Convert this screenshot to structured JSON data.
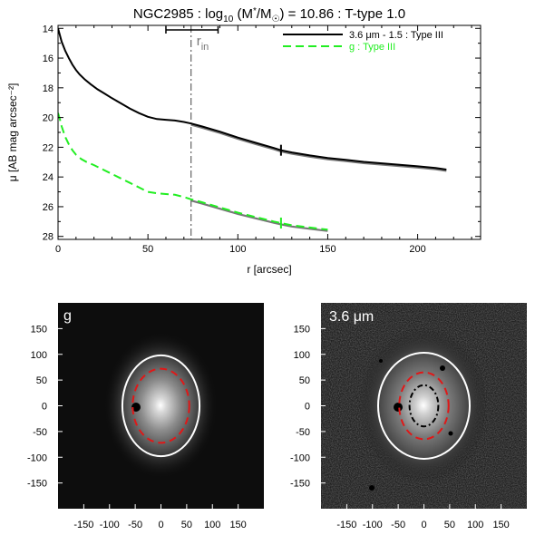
{
  "figure": {
    "title_prefix": "NGC2985 : log",
    "title_sub": "10",
    "title_mid": " (M",
    "title_star": "*",
    "title_slash": "/M",
    "title_sun": "☉",
    "title_suffix": ") = 10.86 : T-type 1.0"
  },
  "chart_data": [
    {
      "type": "line",
      "panel": "surface-brightness-profile",
      "xlabel": "r [arcsec]",
      "ylabel": "μ [AB mag arcsec⁻²]",
      "xlim": [
        0,
        235
      ],
      "ylim": [
        28.2,
        13.8
      ],
      "y_inverted": true,
      "xticks": [
        0,
        50,
        100,
        150,
        200
      ],
      "yticks": [
        14,
        16,
        18,
        20,
        22,
        24,
        26,
        28
      ],
      "legend_position": "top-right",
      "colors": {
        "ir": "#000000",
        "g": "#22ee22",
        "fit": "#555555",
        "rin": "#777777"
      },
      "series": [
        {
          "name": "3.6 μm - 1.5 : Type III",
          "style": "solid",
          "x": [
            0,
            2,
            4,
            6,
            8,
            10,
            12,
            15,
            18,
            22,
            26,
            30,
            35,
            40,
            45,
            50,
            55,
            60,
            65,
            70,
            74,
            80,
            90,
            100,
            110,
            120,
            124,
            130,
            140,
            150,
            160,
            170,
            180,
            190,
            200,
            210,
            216
          ],
          "values": [
            14.0,
            14.9,
            15.5,
            16.0,
            16.45,
            16.8,
            17.1,
            17.45,
            17.75,
            18.1,
            18.4,
            18.7,
            19.05,
            19.4,
            19.7,
            19.95,
            20.1,
            20.15,
            20.2,
            20.3,
            20.4,
            20.6,
            20.95,
            21.35,
            21.7,
            22.05,
            22.2,
            22.35,
            22.55,
            22.72,
            22.85,
            22.98,
            23.08,
            23.18,
            23.28,
            23.4,
            23.5
          ]
        },
        {
          "name": "g : Type III",
          "style": "dashed",
          "x": [
            0,
            1,
            2,
            4,
            6,
            8,
            10,
            13,
            16,
            20,
            25,
            30,
            35,
            40,
            45,
            50,
            55,
            60,
            65,
            70,
            74,
            80,
            90,
            100,
            110,
            120,
            124,
            130,
            140,
            150
          ],
          "values": [
            19.7,
            20.1,
            20.6,
            21.3,
            21.8,
            22.2,
            22.5,
            22.8,
            23.0,
            23.2,
            23.5,
            23.8,
            24.1,
            24.4,
            24.7,
            25.0,
            25.1,
            25.15,
            25.2,
            25.35,
            25.5,
            25.7,
            26.05,
            26.4,
            26.7,
            27.0,
            27.1,
            27.25,
            27.4,
            27.55
          ]
        }
      ],
      "break_markers": [
        {
          "series": "3.6 μm - 1.5 : Type III",
          "x": 124,
          "y": 22.2
        },
        {
          "series": "g : Type III",
          "x": 124,
          "y": 27.1
        }
      ],
      "r_in": {
        "label": "r",
        "label_sub": "in",
        "x": 74,
        "range": [
          60,
          89
        ]
      }
    },
    {
      "type": "image",
      "panel": "g-band-image",
      "label": "g",
      "xticks": [
        "-150",
        "-100",
        "-50",
        "0",
        "50",
        "100",
        "150"
      ],
      "yticks": [
        "150",
        "100",
        "50",
        "0",
        "-50",
        "-100",
        "-150"
      ],
      "xlim": [
        -200,
        200
      ],
      "ylim": [
        -200,
        200
      ],
      "ellipses": [
        {
          "role": "outer",
          "color": "#ffffff",
          "style": "solid",
          "a": 75,
          "b": 98
        },
        {
          "role": "break",
          "color": "#e01818",
          "style": "dashed",
          "a": 55,
          "b": 72
        }
      ]
    },
    {
      "type": "image",
      "panel": "ir-image",
      "label": "3.6 μm",
      "xticks": [
        "-150",
        "-100",
        "-50",
        "0",
        "50",
        "100",
        "150"
      ],
      "yticks": [
        "150",
        "100",
        "50",
        "0",
        "-50",
        "-100",
        "-150"
      ],
      "xlim": [
        -200,
        200
      ],
      "ylim": [
        -200,
        200
      ],
      "ellipses": [
        {
          "role": "outer",
          "color": "#ffffff",
          "style": "solid",
          "a": 89,
          "b": 103
        },
        {
          "role": "break",
          "color": "#e01818",
          "style": "dashed",
          "a": 48,
          "b": 65
        },
        {
          "role": "inner",
          "color": "#000000",
          "style": "dashdot",
          "a": 28,
          "b": 40
        }
      ]
    }
  ]
}
